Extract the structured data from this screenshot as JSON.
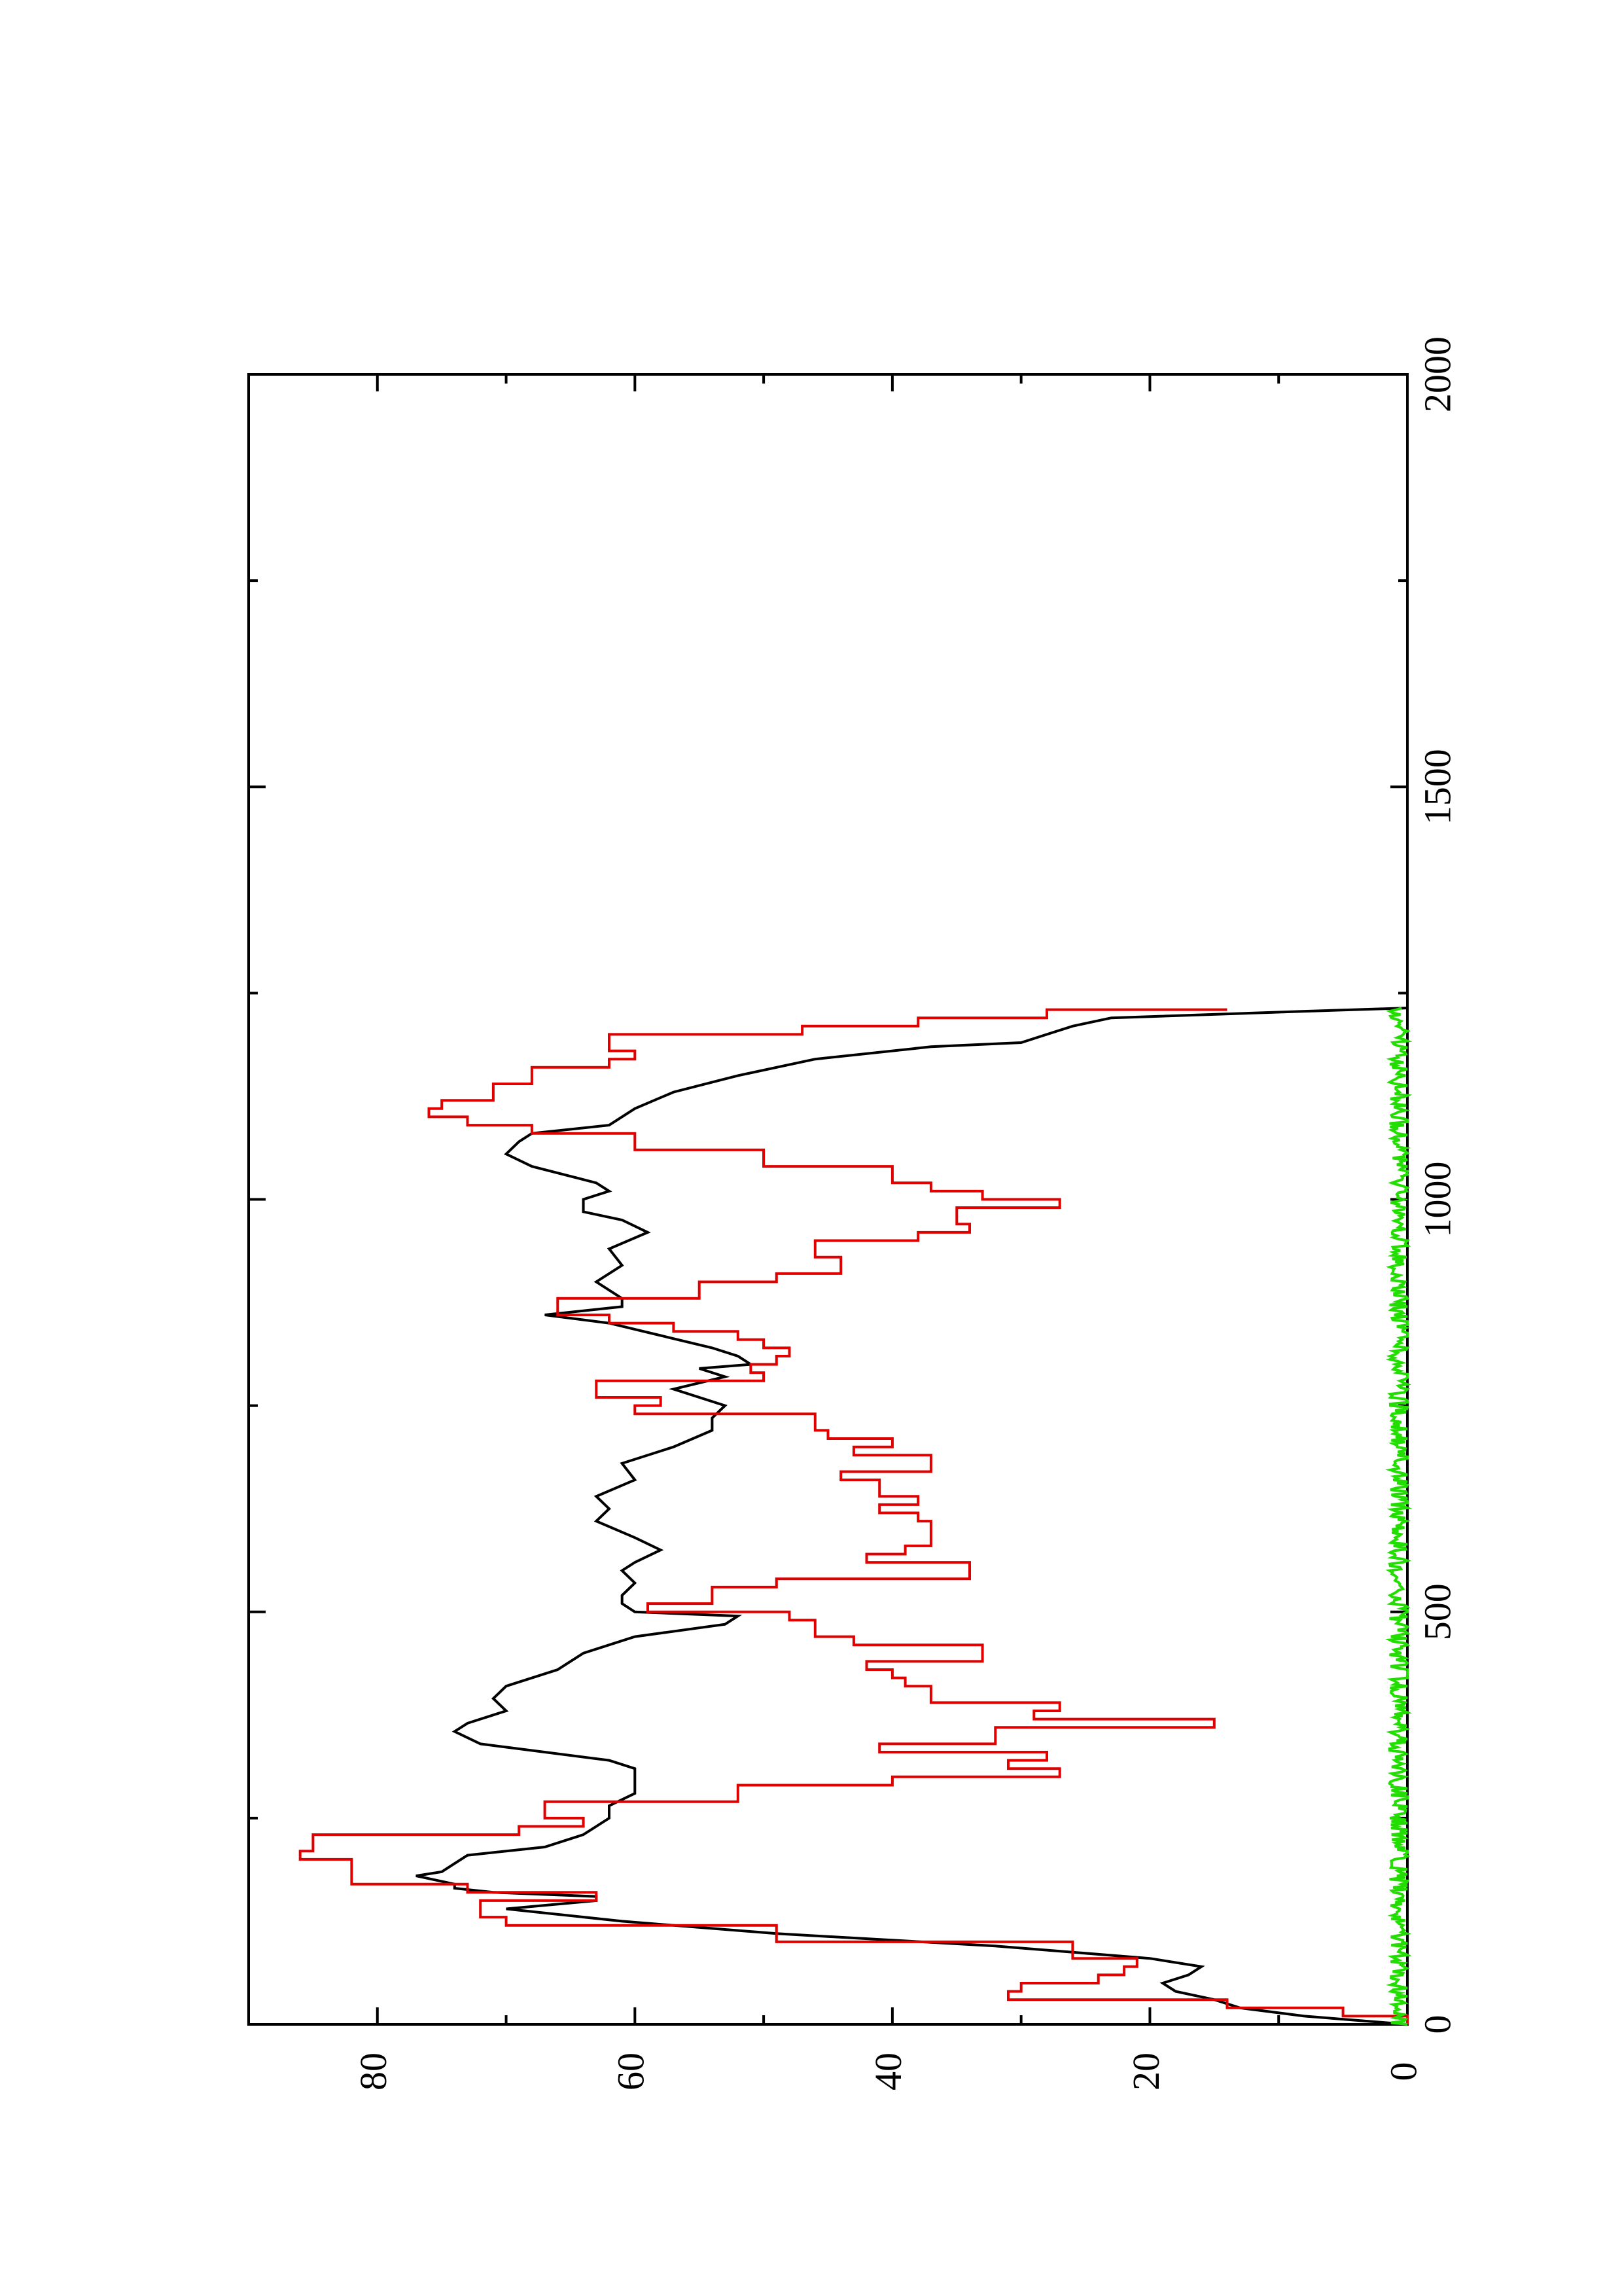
{
  "chart_data": {
    "type": "line",
    "orientation": "rotated-90-ccw",
    "title": "",
    "xlabel": "",
    "ylabel": "",
    "xlim": [
      0,
      2000
    ],
    "ylim": [
      0,
      90
    ],
    "x_ticks": [
      {
        "value": 0,
        "label": "0"
      },
      {
        "value": 500,
        "label": "500"
      },
      {
        "value": 1000,
        "label": "1000"
      },
      {
        "value": 1500,
        "label": "1500"
      },
      {
        "value": 2000,
        "label": "2000"
      }
    ],
    "x_minor_ticks": [
      250,
      750,
      1250,
      1750
    ],
    "y_ticks": [
      {
        "value": 0,
        "label": "0"
      },
      {
        "value": 20,
        "label": "20"
      },
      {
        "value": 40,
        "label": "40"
      },
      {
        "value": 60,
        "label": "60"
      },
      {
        "value": 80,
        "label": "80"
      }
    ],
    "y_minor_ticks": [
      10,
      30,
      50,
      70
    ],
    "grid": false,
    "legend": "none",
    "series": [
      {
        "color": "#000000",
        "x": [
          0,
          10,
          20,
          30,
          40,
          50,
          60,
          70,
          80,
          95,
          110,
          125,
          140,
          150,
          155,
          160,
          165,
          170,
          180,
          185,
          195,
          205,
          215,
          230,
          240,
          250,
          265,
          280,
          300,
          310,
          320,
          340,
          355,
          365,
          380,
          395,
          410,
          430,
          450,
          470,
          485,
          495,
          500,
          510,
          520,
          535,
          550,
          560,
          575,
          590,
          610,
          625,
          640,
          660,
          680,
          700,
          720,
          735,
          750,
          770,
          785,
          795,
          800,
          810,
          820,
          835,
          850,
          860,
          870,
          880,
          900,
          920,
          940,
          960,
          975,
          985,
          1000,
          1010,
          1020,
          1040,
          1055,
          1070,
          1080,
          1090,
          1110,
          1130,
          1150,
          1170,
          1185,
          1190,
          1200,
          1210,
          1220,
          1228,
          1232
        ],
        "y": [
          0,
          8,
          13,
          15,
          18,
          19,
          17,
          16,
          20,
          32,
          49,
          61,
          70,
          63,
          63,
          71,
          74,
          74,
          77,
          75,
          74,
          73,
          67,
          64,
          63,
          62,
          62,
          60,
          60,
          60,
          62,
          72,
          74,
          73,
          70,
          71,
          70,
          66,
          64,
          60,
          53,
          52,
          60,
          61,
          61,
          60,
          61,
          60,
          58,
          60,
          63,
          62,
          63,
          60,
          61,
          57,
          54,
          54,
          53,
          57,
          53,
          55,
          51,
          52,
          54,
          58,
          62,
          67,
          61,
          61,
          63,
          61,
          62,
          59,
          61,
          64,
          64,
          62,
          63,
          68,
          70,
          69,
          68,
          62,
          60,
          57,
          52,
          46,
          37,
          30,
          28,
          26,
          23,
          8,
          0
        ]
      },
      {
        "color": "#e00000",
        "step": true,
        "x": [
          0,
          10,
          20,
          30,
          40,
          50,
          60,
          70,
          80,
          100,
          120,
          130,
          150,
          160,
          170,
          190,
          200,
          210,
          230,
          240,
          250,
          270,
          290,
          300,
          310,
          320,
          330,
          340,
          360,
          370,
          380,
          390,
          410,
          420,
          430,
          440,
          460,
          470,
          490,
          500,
          510,
          530,
          540,
          560,
          570,
          580,
          600,
          610,
          620,
          630,
          640,
          660,
          670,
          690,
          700,
          710,
          720,
          740,
          750,
          760,
          780,
          790,
          800,
          810,
          820,
          830,
          840,
          850,
          860,
          880,
          900,
          910,
          930,
          950,
          960,
          970,
          990,
          1000,
          1010,
          1020,
          1040,
          1060,
          1080,
          1090,
          1100,
          1110,
          1120,
          1140,
          1160,
          1170,
          1180,
          1200,
          1210,
          1220,
          1230
        ],
        "y": [
          0,
          5,
          14,
          31,
          30,
          24,
          22,
          21,
          26,
          49,
          70,
          72,
          63,
          73,
          82,
          82,
          86,
          85,
          69,
          64,
          67,
          52,
          40,
          27,
          31,
          28,
          41,
          32,
          15,
          29,
          27,
          37,
          39,
          40,
          42,
          33,
          43,
          46,
          48,
          59,
          54,
          49,
          34,
          42,
          39,
          37,
          37,
          38,
          41,
          38,
          41,
          44,
          37,
          43,
          40,
          45,
          46,
          60,
          58,
          63,
          50,
          51,
          49,
          48,
          50,
          52,
          57,
          62,
          66,
          55,
          49,
          44,
          46,
          38,
          34,
          35,
          27,
          33,
          37,
          40,
          50,
          60,
          68,
          73,
          76,
          75,
          71,
          68,
          62,
          60,
          62,
          47,
          38,
          28,
          14
        ]
      },
      {
        "color": "#22dd00",
        "noise": true,
        "mean": 0.6,
        "xrange": [
          0,
          1232
        ]
      }
    ]
  }
}
